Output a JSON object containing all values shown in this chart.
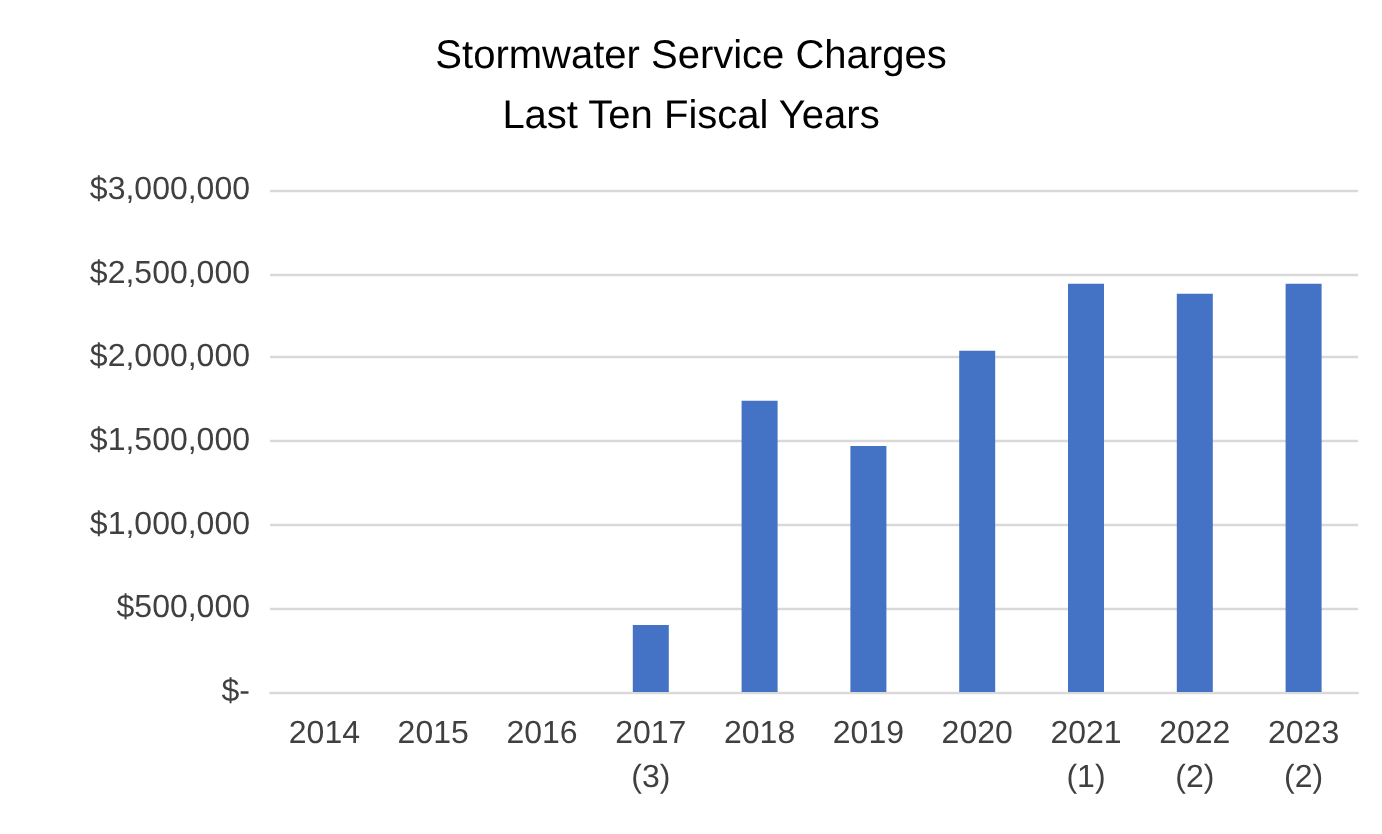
{
  "chart_data": {
    "type": "bar",
    "title": "Stormwater Service Charges\nLast Ten Fiscal Years",
    "categories": [
      "2014",
      "2015",
      "2016",
      "2017\n(3)",
      "2018",
      "2019",
      "2020",
      "2021\n(1)",
      "2022\n(2)",
      "2023\n(2)"
    ],
    "values": [
      0,
      0,
      0,
      400000,
      1740000,
      1470000,
      2040000,
      2440000,
      2380000,
      2440000
    ],
    "color": "#4472c4",
    "ylim": [
      0,
      3000000
    ],
    "yticks": [
      {
        "value": 0,
        "label": "$-"
      },
      {
        "value": 500000,
        "label": "$500,000"
      },
      {
        "value": 1000000,
        "label": "$1,000,000"
      },
      {
        "value": 1500000,
        "label": "$1,500,000"
      },
      {
        "value": 2000000,
        "label": "$2,000,000"
      },
      {
        "value": 2500000,
        "label": "$2,500,000"
      },
      {
        "value": 3000000,
        "label": "$3,000,000"
      }
    ],
    "grid": "y"
  }
}
